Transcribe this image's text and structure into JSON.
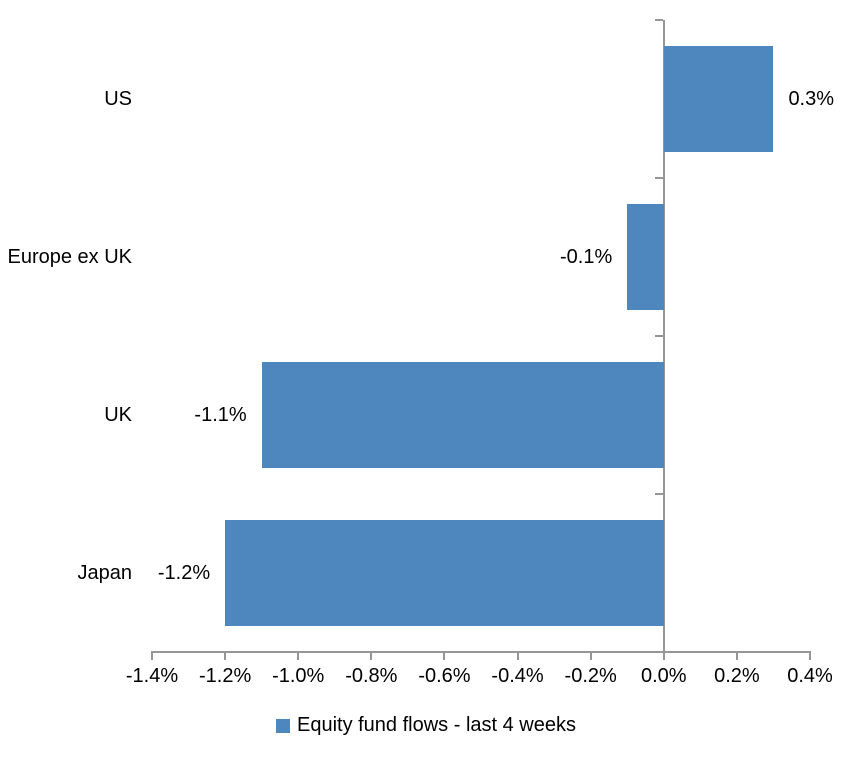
{
  "chart_data": {
    "type": "bar",
    "orientation": "horizontal",
    "title": "",
    "categories": [
      "US",
      "Europe ex UK",
      "UK",
      "Japan"
    ],
    "values": [
      0.3,
      -0.1,
      -1.1,
      -1.2
    ],
    "value_labels": [
      "0.3%",
      "-0.1%",
      "-1.1%",
      "-1.2%"
    ],
    "series": [
      {
        "name": "Equity fund flows - last 4 weeks",
        "values": [
          0.3,
          -0.1,
          -1.1,
          -1.2
        ]
      }
    ],
    "xlabel": "",
    "ylabel": "",
    "xlim": [
      -1.4,
      0.4
    ],
    "xticks": [
      -1.4,
      -1.2,
      -1.0,
      -0.8,
      -0.6,
      -0.4,
      -0.2,
      0.0,
      0.2,
      0.4
    ],
    "xtick_labels": [
      "-1.4%",
      "-1.2%",
      "-1.0%",
      "-0.8%",
      "-0.6%",
      "-0.4%",
      "-0.2%",
      "0.0%",
      "0.2%",
      "0.4%"
    ],
    "grid": false,
    "legend_position": "bottom",
    "bar_color": "#4D87BE",
    "axis_color": "#969696",
    "text_color": "#000000",
    "background_color": "#FFFFFF"
  },
  "legend": {
    "label": "Equity fund flows - last 4 weeks"
  }
}
